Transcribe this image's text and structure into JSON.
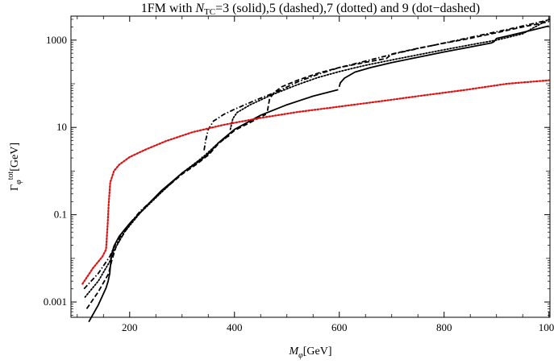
{
  "chart_data": {
    "type": "line",
    "title": {
      "prefix": "1FM with ",
      "var": "N",
      "var_sub": "TC",
      "rest": "=3 (solid),5 (dashed),7 (dotted) and 9 (dot−dashed)"
    },
    "xlabel": {
      "var": "M",
      "var_sub": "φ",
      "unit": "[GeV]"
    },
    "ylabel": {
      "var": "Γ",
      "var_sup": "tot",
      "var_sub": "φ",
      "unit": "[GeV]"
    },
    "xlim": [
      88,
      1002
    ],
    "ylim_log10": [
      -3.35,
      3.55
    ],
    "y_scale": "log",
    "grid": false,
    "x_ticks": [
      200,
      400,
      600,
      800,
      1000
    ],
    "x_tick_labels": [
      "200",
      "400",
      "600",
      "800",
      "1000"
    ],
    "y_ticks": [
      0.001,
      0.1,
      10,
      1000
    ],
    "y_tick_labels": [
      "0.001",
      "0.1",
      "10",
      "1000"
    ],
    "series": [
      {
        "style": "solid",
        "color": "#000000",
        "segments": [
          [
            [
              122,
              0.00035
            ],
            [
              140,
              0.00085
            ],
            [
              155,
              0.0021
            ],
            [
              159,
              0.003
            ],
            [
              162,
              0.0045
            ],
            [
              164,
              0.0085
            ],
            [
              166,
              0.013
            ],
            [
              170,
              0.019
            ],
            [
              180,
              0.032
            ],
            [
              200,
              0.063
            ],
            [
              230,
              0.15
            ],
            [
              260,
              0.35
            ],
            [
              300,
              0.9
            ],
            [
              330,
              1.6
            ],
            [
              345,
              2.2
            ],
            [
              350,
              2.5
            ],
            [
              370,
              4.5
            ],
            [
              400,
              9
            ],
            [
              450,
              19
            ],
            [
              500,
              33
            ],
            [
              550,
              52
            ],
            [
              598,
              73
            ]
          ],
          [
            [
              600,
              85
            ],
            [
              602,
              105
            ],
            [
              610,
              135
            ],
            [
              630,
              185
            ],
            [
              660,
              235
            ],
            [
              700,
              305
            ],
            [
              750,
              405
            ],
            [
              800,
              535
            ],
            [
              850,
              695
            ],
            [
              890,
              860
            ],
            [
              895,
              920
            ],
            [
              900,
              1090
            ],
            [
              950,
              1500
            ],
            [
              1000,
              2100
            ]
          ]
        ]
      },
      {
        "style": "dashed",
        "color": "#000000",
        "segments": [
          [
            [
              118,
              0.0007
            ],
            [
              140,
              0.0017
            ],
            [
              160,
              0.0045
            ],
            [
              162,
              0.0058
            ],
            [
              166,
              0.009
            ],
            [
              175,
              0.02
            ],
            [
              200,
              0.06
            ],
            [
              230,
              0.15
            ],
            [
              260,
              0.33
            ],
            [
              300,
              0.85
            ],
            [
              330,
              1.5
            ],
            [
              345,
              2.1
            ],
            [
              350,
              2.3
            ],
            [
              370,
              4.3
            ],
            [
              400,
              8.5
            ],
            [
              440,
              15
            ],
            [
              460,
              20
            ]
          ],
          [
            [
              463,
              24
            ],
            [
              467,
              45
            ],
            [
              475,
              62
            ],
            [
              490,
              85
            ],
            [
              520,
              120
            ],
            [
              560,
              175
            ],
            [
              600,
              235
            ],
            [
              650,
              310
            ],
            [
              690,
              380
            ],
            [
              700,
              480
            ],
            [
              750,
              650
            ],
            [
              800,
              850
            ],
            [
              850,
              1100
            ],
            [
              900,
              1480
            ],
            [
              950,
              2000
            ],
            [
              1000,
              2650
            ]
          ]
        ]
      },
      {
        "style": "dotted",
        "color": "#000000",
        "segments": [
          [
            [
              115,
              0.0013
            ],
            [
              140,
              0.003
            ],
            [
              162,
              0.0085
            ],
            [
              170,
              0.015
            ],
            [
              190,
              0.04
            ],
            [
              220,
              0.11
            ],
            [
              260,
              0.32
            ],
            [
              300,
              0.9
            ],
            [
              340,
              2.1
            ],
            [
              370,
              4.5
            ],
            [
              390,
              6.5
            ]
          ],
          [
            [
              392,
              9
            ],
            [
              397,
              16
            ],
            [
              405,
              22
            ],
            [
              430,
              33
            ],
            [
              470,
              55
            ],
            [
              520,
              95
            ],
            [
              560,
              140
            ],
            [
              600,
              190
            ],
            [
              650,
              265
            ],
            [
              700,
              350
            ],
            [
              750,
              460
            ],
            [
              800,
              600
            ],
            [
              850,
              780
            ],
            [
              900,
              1000
            ],
            [
              950,
              1400
            ],
            [
              1000,
              3000
            ]
          ]
        ]
      },
      {
        "style": "dot-dashed",
        "color": "#000000",
        "segments": [
          [
            [
              113,
              0.002
            ],
            [
              140,
              0.0045
            ],
            [
              162,
              0.011
            ],
            [
              170,
              0.018
            ],
            [
              190,
              0.045
            ],
            [
              220,
              0.12
            ],
            [
              260,
              0.33
            ],
            [
              300,
              0.9
            ],
            [
              330,
              1.6
            ],
            [
              340,
              2.2
            ]
          ],
          [
            [
              342,
              3
            ],
            [
              345,
              5
            ],
            [
              350,
              9
            ],
            [
              360,
              14
            ],
            [
              380,
              20
            ],
            [
              400,
              26
            ],
            [
              440,
              42
            ],
            [
              480,
              65
            ],
            [
              520,
              110
            ],
            [
              560,
              165
            ],
            [
              600,
              235
            ],
            [
              650,
              330
            ],
            [
              700,
              470
            ],
            [
              750,
              640
            ],
            [
              800,
              860
            ],
            [
              850,
              1150
            ],
            [
              900,
              1550
            ],
            [
              950,
              2100
            ],
            [
              1000,
              2900
            ]
          ]
        ]
      },
      {
        "style": "dotted",
        "color": "#dd1111",
        "segments": [
          [
            [
              110,
              0.0026
            ],
            [
              130,
              0.006
            ],
            [
              148,
              0.011
            ],
            [
              155,
              0.016
            ],
            [
              158,
              0.06
            ],
            [
              160,
              0.18
            ],
            [
              163,
              0.55
            ],
            [
              170,
              1.0
            ],
            [
              180,
              1.4
            ],
            [
              200,
              2.1
            ],
            [
              230,
              3.1
            ],
            [
              270,
              4.9
            ],
            [
              320,
              7.8
            ],
            [
              380,
              11.5
            ],
            [
              450,
              16.5
            ],
            [
              520,
              22.5
            ],
            [
              600,
              30
            ],
            [
              680,
              40
            ],
            [
              760,
              54
            ],
            [
              840,
              72
            ],
            [
              920,
              100
            ],
            [
              1000,
              120
            ]
          ]
        ]
      }
    ]
  }
}
